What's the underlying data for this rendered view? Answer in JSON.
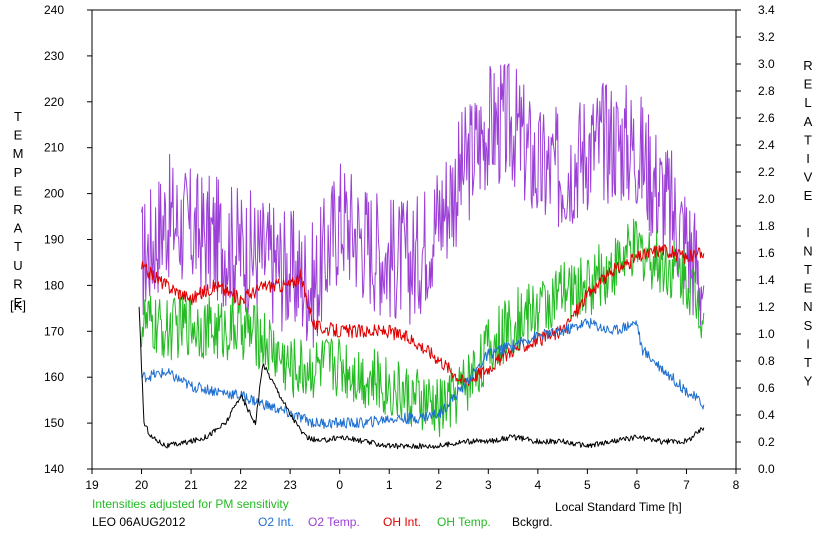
{
  "chart_data": {
    "type": "line",
    "left_axis": {
      "label": "TEMPERATURE",
      "unit": "[K]",
      "ylim": [
        140,
        240
      ],
      "ticks": [
        140,
        150,
        160,
        170,
        180,
        190,
        200,
        210,
        220,
        230,
        240
      ]
    },
    "right_axis": {
      "label": "RELATIVE INTENSITY",
      "ylim": [
        0,
        3.4
      ],
      "ticks": [
        "0.0",
        "0.2",
        "0.4",
        "0.6",
        "0.8",
        "1.0",
        "1.2",
        "1.4",
        "1.6",
        "1.8",
        "2.0",
        "2.2",
        "2.4",
        "2.6",
        "2.8",
        "3.0",
        "3.2",
        "3.4"
      ]
    },
    "x_axis": {
      "label": "Local Standard Time [h]",
      "xlim": [
        19,
        32
      ],
      "tick_values": [
        19,
        20,
        21,
        22,
        23,
        24,
        25,
        26,
        27,
        28,
        29,
        30,
        31,
        32
      ],
      "tick_labels": [
        "19",
        "20",
        "21",
        "22",
        "23",
        "0",
        "1",
        "2",
        "3",
        "4",
        "5",
        "6",
        "7",
        "8"
      ]
    },
    "note": "Intensities adjusted for PM sensitivity",
    "station": "LEO 06AUG2012",
    "legend": [
      {
        "name": "O2 Int.",
        "color": "#1f6fd0"
      },
      {
        "name": "O2 Temp.",
        "color": "#9b3fd6"
      },
      {
        "name": "OH Int.",
        "color": "#e00000"
      },
      {
        "name": "OH Temp.",
        "color": "#22bb22"
      },
      {
        "name": "Bckgrd.",
        "color": "#000000"
      }
    ],
    "series": [
      {
        "axis": "left",
        "color": "#9b3fd6",
        "noise": 14,
        "x": [
          20.0,
          20.5,
          21.0,
          21.5,
          22.0,
          22.5,
          23.0,
          23.5,
          24.0,
          24.5,
          25.0,
          25.5,
          26.0,
          26.5,
          27.0,
          27.5,
          28.0,
          28.5,
          29.0,
          29.5,
          30.0,
          30.5,
          31.0,
          31.35
        ],
        "y": [
          185,
          195,
          192,
          190,
          188,
          186,
          183,
          180,
          195,
          190,
          186,
          185,
          195,
          205,
          215,
          215,
          205,
          205,
          210,
          212,
          210,
          200,
          190,
          180
        ]
      },
      {
        "axis": "left",
        "color": "#22bb22",
        "noise": 7,
        "x": [
          20.0,
          20.5,
          21.0,
          21.5,
          22.0,
          22.5,
          23.0,
          23.5,
          24.0,
          24.5,
          25.0,
          25.5,
          26.0,
          26.5,
          27.0,
          27.5,
          28.0,
          28.5,
          29.0,
          29.5,
          30.0,
          30.5,
          31.0,
          31.35
        ],
        "y": [
          172,
          170,
          172,
          170,
          171,
          168,
          162,
          162,
          163,
          160,
          158,
          155,
          153,
          158,
          166,
          172,
          175,
          178,
          180,
          184,
          188,
          185,
          182,
          174
        ]
      },
      {
        "axis": "left",
        "color": "#e00000",
        "noise": 1.5,
        "x": [
          20.0,
          20.5,
          21.0,
          21.5,
          22.0,
          22.5,
          23.0,
          23.2,
          23.5,
          24.0,
          24.5,
          25.0,
          25.5,
          26.0,
          26.5,
          27.0,
          27.5,
          28.0,
          28.5,
          29.0,
          29.5,
          30.0,
          30.5,
          31.0,
          31.35
        ],
        "y": [
          184,
          180,
          177,
          180,
          177,
          180,
          180,
          182,
          171,
          170,
          170,
          170,
          168,
          164,
          159,
          162,
          166,
          168,
          170,
          178,
          183,
          186,
          188,
          186,
          187
        ]
      },
      {
        "axis": "left",
        "color": "#1f6fd0",
        "noise": 1.2,
        "x": [
          20.0,
          20.5,
          21.0,
          21.5,
          22.0,
          22.5,
          23.0,
          23.5,
          24.0,
          24.5,
          25.0,
          25.5,
          26.0,
          26.5,
          27.0,
          27.5,
          28.0,
          28.5,
          29.0,
          29.5,
          30.0,
          30.1,
          30.5,
          31.0,
          31.35
        ],
        "y": [
          160,
          161,
          158,
          157,
          156,
          154,
          152,
          150,
          150,
          150,
          151,
          151,
          152,
          158,
          165,
          167,
          169,
          170,
          172,
          170,
          172,
          166,
          162,
          157,
          154
        ]
      },
      {
        "axis": "left",
        "color": "#000000",
        "noise": 0.6,
        "x": [
          19.95,
          20.05,
          20.2,
          20.5,
          21.0,
          21.3,
          21.7,
          22.0,
          22.3,
          22.45,
          22.7,
          23.0,
          23.3,
          23.6,
          24.0,
          24.5,
          25.0,
          25.5,
          26.0,
          26.5,
          27.0,
          27.5,
          28.0,
          28.5,
          29.0,
          29.5,
          30.0,
          30.5,
          31.0,
          31.35
        ],
        "y": [
          175,
          150,
          147,
          145,
          146,
          147,
          150,
          156,
          150,
          163,
          158,
          152,
          147,
          146,
          147,
          146,
          145,
          145,
          145,
          146,
          146,
          147,
          146,
          146,
          145,
          146,
          147,
          146,
          146,
          149
        ]
      }
    ]
  }
}
